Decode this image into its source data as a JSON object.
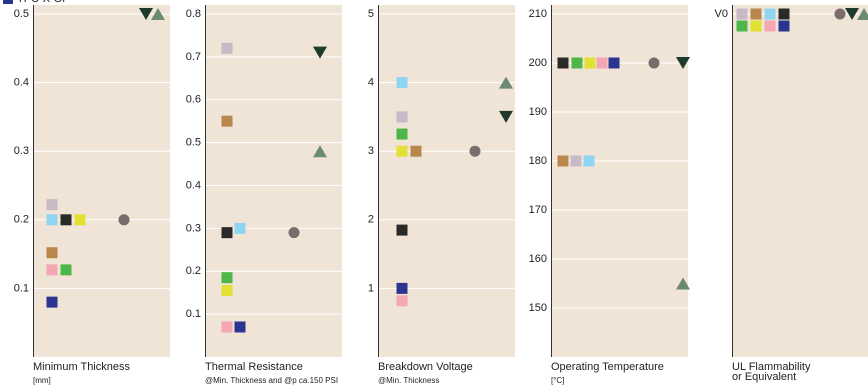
{
  "chart_data": [
    {
      "type": "scatter",
      "title": "Minimum Thickness",
      "subtitle": "[mm]",
      "legend": {
        "label": "TPC-X-GP",
        "color": "#2b3590"
      },
      "ylim": [
        0,
        0.5
      ],
      "yticks": [
        0.1,
        0.2,
        0.3,
        0.4,
        0.5
      ],
      "grid": true,
      "series": [
        {
          "color": "#c9b9c6",
          "marker": "square",
          "values": [
            0.222
          ]
        },
        {
          "color": "#8fd5f2",
          "marker": "square",
          "values": [
            0.2
          ]
        },
        {
          "color": "#2a2a28",
          "marker": "square",
          "values": [
            0.2
          ]
        },
        {
          "color": "#e2e032",
          "marker": "square",
          "values": [
            0.2
          ]
        },
        {
          "color": "#b9874b",
          "marker": "square",
          "values": [
            0.152
          ]
        },
        {
          "color": "#f4a6b2",
          "marker": "square",
          "values": [
            0.127
          ]
        },
        {
          "color": "#4db848",
          "marker": "square",
          "values": [
            0.127
          ]
        },
        {
          "color": "#2b3590",
          "marker": "square",
          "values": [
            0.08
          ]
        },
        {
          "color": "#7b6b6b",
          "marker": "circle",
          "values": [
            0.2
          ]
        },
        {
          "color": "#1f3a2a",
          "marker": "triangle-down",
          "values": [
            0.5
          ]
        },
        {
          "color": "#6b8a72",
          "marker": "triangle-up",
          "values": [
            0.5
          ]
        }
      ]
    },
    {
      "type": "scatter",
      "title": "Thermal Resistance",
      "subtitle": "@Min. Thickness and @p ca.150 PSI",
      "ylim": [
        0,
        0.8
      ],
      "yticks": [
        0.1,
        0.2,
        0.3,
        0.4,
        0.5,
        0.6,
        0.7,
        0.8
      ],
      "grid": true,
      "series": [
        {
          "color": "#c9b9c6",
          "marker": "square",
          "values": [
            0.72
          ]
        },
        {
          "color": "#8fd5f2",
          "marker": "square",
          "values": [
            0.3
          ]
        },
        {
          "color": "#2a2a28",
          "marker": "square",
          "values": [
            0.29
          ]
        },
        {
          "color": "#e2e032",
          "marker": "square",
          "values": [
            0.155
          ]
        },
        {
          "color": "#b9874b",
          "marker": "square",
          "values": [
            0.55
          ]
        },
        {
          "color": "#f4a6b2",
          "marker": "square",
          "values": [
            0.07
          ]
        },
        {
          "color": "#4db848",
          "marker": "square",
          "values": [
            0.185
          ]
        },
        {
          "color": "#2b3590",
          "marker": "square",
          "values": [
            0.07
          ]
        },
        {
          "color": "#7b6b6b",
          "marker": "circle",
          "values": [
            0.29
          ]
        },
        {
          "color": "#1f3a2a",
          "marker": "triangle-down",
          "values": [
            0.71
          ]
        },
        {
          "color": "#6b8a72",
          "marker": "triangle-up",
          "values": [
            0.48
          ]
        }
      ]
    },
    {
      "type": "scatter",
      "title": "Breakdown Voltage",
      "subtitle": "@Min. Thickness",
      "ylim": [
        0,
        5
      ],
      "yticks": [
        1,
        2,
        3,
        4,
        5
      ],
      "grid": true,
      "series": [
        {
          "color": "#c9b9c6",
          "marker": "square",
          "values": [
            3.5
          ]
        },
        {
          "color": "#8fd5f2",
          "marker": "square",
          "values": [
            4
          ]
        },
        {
          "color": "#2a2a28",
          "marker": "square",
          "values": [
            1.85
          ]
        },
        {
          "color": "#e2e032",
          "marker": "square",
          "values": [
            3
          ]
        },
        {
          "color": "#b9874b",
          "marker": "square",
          "values": [
            3
          ]
        },
        {
          "color": "#f4a6b2",
          "marker": "square",
          "values": [
            0.82
          ]
        },
        {
          "color": "#4db848",
          "marker": "square",
          "values": [
            3.25
          ]
        },
        {
          "color": "#2b3590",
          "marker": "square",
          "values": [
            1
          ]
        },
        {
          "color": "#7b6b6b",
          "marker": "circle",
          "values": [
            3
          ]
        },
        {
          "color": "#1f3a2a",
          "marker": "triangle-down",
          "values": [
            3.5
          ]
        },
        {
          "color": "#6b8a72",
          "marker": "triangle-up",
          "values": [
            4
          ]
        }
      ]
    },
    {
      "type": "scatter",
      "title": "Operating Temperature",
      "subtitle": "[°C]",
      "ylim": [
        140,
        210
      ],
      "yticks": [
        150,
        160,
        170,
        180,
        190,
        200,
        210
      ],
      "grid": true,
      "series": [
        {
          "color": "#c9b9c6",
          "marker": "square",
          "values": [
            180
          ]
        },
        {
          "color": "#8fd5f2",
          "marker": "square",
          "values": [
            180
          ]
        },
        {
          "color": "#2a2a28",
          "marker": "square",
          "values": [
            200
          ]
        },
        {
          "color": "#e2e032",
          "marker": "square",
          "values": [
            200
          ]
        },
        {
          "color": "#b9874b",
          "marker": "square",
          "values": [
            180
          ]
        },
        {
          "color": "#f4a6b2",
          "marker": "square",
          "values": [
            200
          ]
        },
        {
          "color": "#4db848",
          "marker": "square",
          "values": [
            200
          ]
        },
        {
          "color": "#2b3590",
          "marker": "square",
          "values": [
            200
          ]
        },
        {
          "color": "#7b6b6b",
          "marker": "circle",
          "values": [
            200
          ]
        },
        {
          "color": "#1f3a2a",
          "marker": "triangle-down",
          "values": [
            200
          ]
        },
        {
          "color": "#6b8a72",
          "marker": "triangle-up",
          "values": [
            155
          ]
        }
      ]
    },
    {
      "type": "scatter",
      "title": [
        "UL Flammability",
        "or Equivalent"
      ],
      "ylim": [
        -1.2,
        0
      ],
      "yticks": [
        {
          "value": 0,
          "label": "V0"
        }
      ],
      "grid": true,
      "series": [
        {
          "color": "#c9b9c6",
          "marker": "square",
          "values": [
            0
          ]
        },
        {
          "color": "#8fd5f2",
          "marker": "square",
          "values": [
            0
          ]
        },
        {
          "color": "#2a2a28",
          "marker": "square",
          "values": [
            0
          ]
        },
        {
          "color": "#e2e032",
          "marker": "square",
          "values": [
            0
          ]
        },
        {
          "color": "#b9874b",
          "marker": "square",
          "values": [
            0
          ]
        },
        {
          "color": "#f4a6b2",
          "marker": "square",
          "values": [
            0
          ]
        },
        {
          "color": "#4db848",
          "marker": "square",
          "values": [
            0
          ]
        },
        {
          "color": "#2b3590",
          "marker": "square",
          "values": [
            0
          ]
        },
        {
          "color": "#7b6b6b",
          "marker": "circle",
          "values": [
            0
          ]
        },
        {
          "color": "#1f3a2a",
          "marker": "triangle-down",
          "values": [
            0
          ]
        },
        {
          "color": "#6b8a72",
          "marker": "triangle-up",
          "values": [
            0
          ]
        }
      ]
    }
  ]
}
